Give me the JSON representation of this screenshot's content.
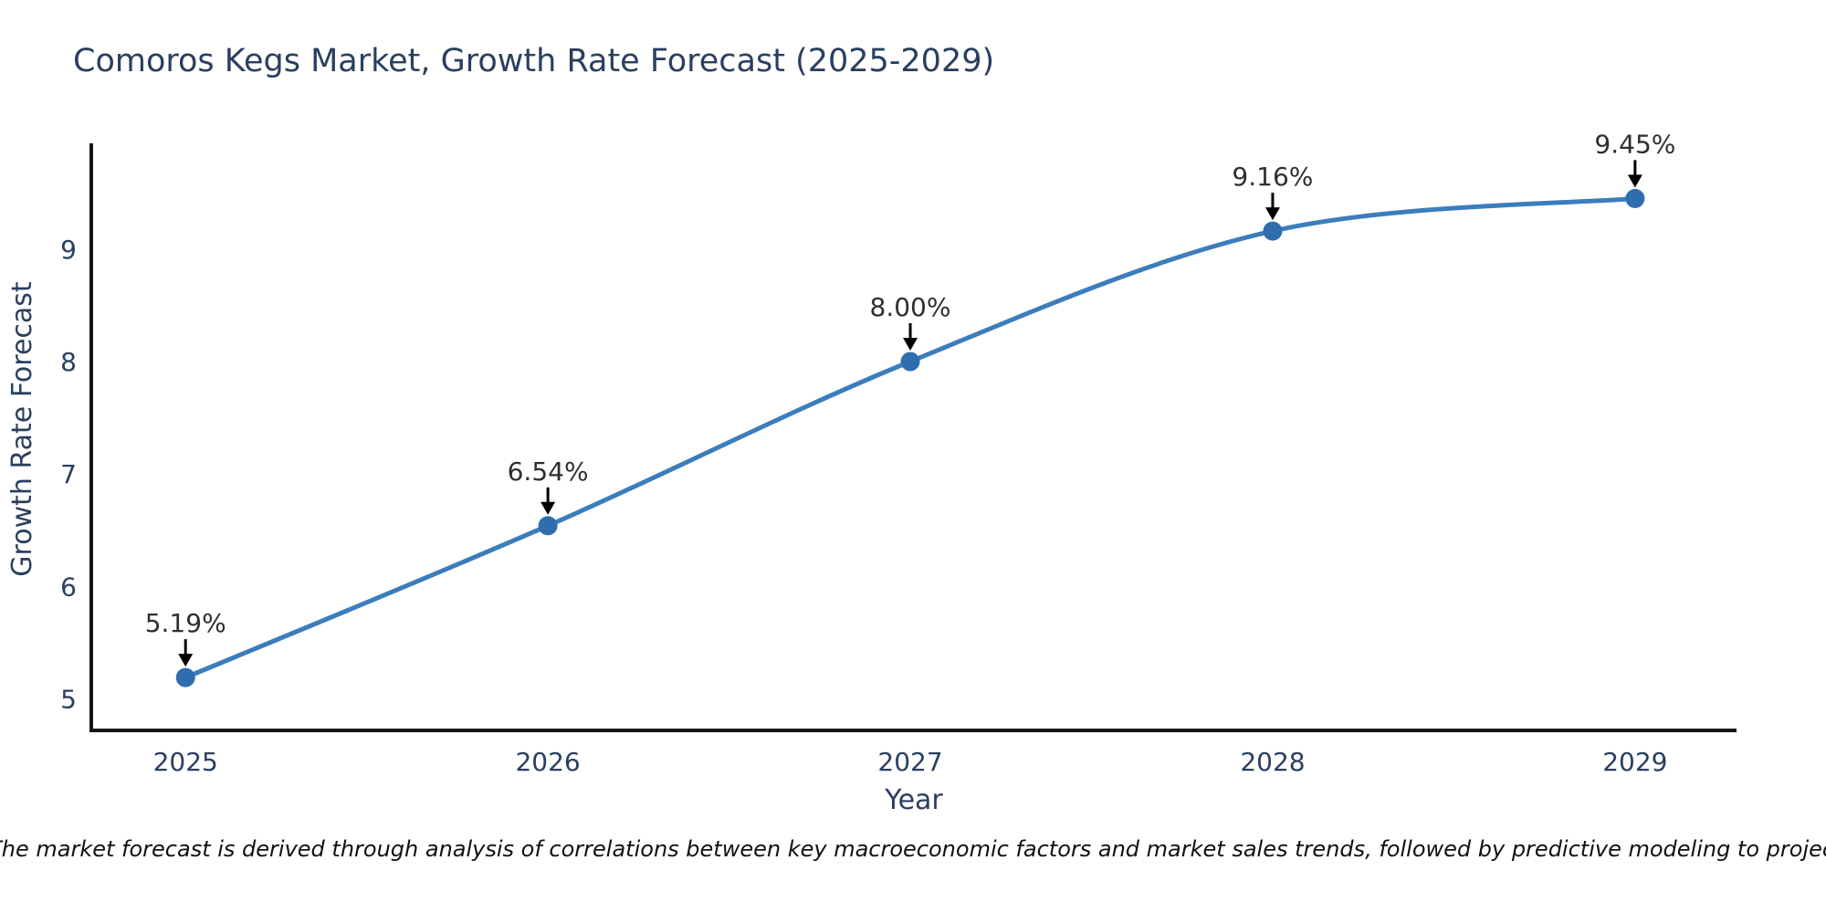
{
  "title": "Comoros Kegs Market, Growth Rate Forecast (2025-2029)",
  "note": "Note: The market forecast is derived through analysis of correlations between key macroeconomic factors and market sales trends, followed by predictive modeling to project future sales.",
  "chart_data": {
    "type": "line",
    "title": "Comoros Kegs Market, Growth Rate Forecast (2025-2029)",
    "xlabel": "Year",
    "ylabel": "Growth Rate Forecast",
    "x": [
      2025,
      2026,
      2027,
      2028,
      2029
    ],
    "series": [
      {
        "name": "Growth Rate Forecast",
        "values": [
          5.19,
          6.54,
          8.0,
          9.16,
          9.45
        ],
        "point_labels": [
          "5.19%",
          "6.54%",
          "8.00%",
          "9.16%",
          "9.45%"
        ]
      }
    ],
    "yticks": [
      5,
      6,
      7,
      8,
      9
    ],
    "ylim": [
      4.72,
      9.94
    ],
    "xlim": [
      2024.74,
      2029.28
    ],
    "line_shape": "spline",
    "grid": false,
    "legend": false,
    "colors": {
      "line": "#3c7dbb",
      "marker": "#2f6eae",
      "axis": "#161616",
      "text": "#2a3f5f",
      "annotation_text": "#2f2f2f",
      "annotation_arrow": "#000000",
      "background": "#ffffff"
    }
  }
}
